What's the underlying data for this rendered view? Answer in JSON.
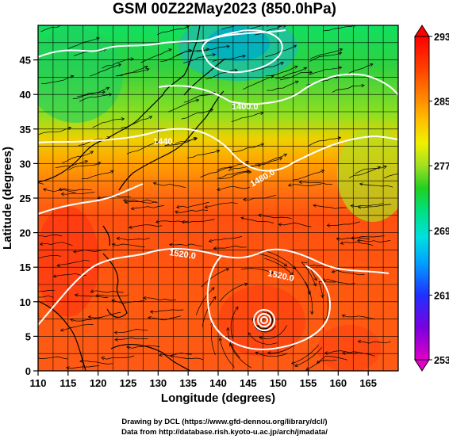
{
  "title": "GSM 00Z22May2023 (850.0hPa)",
  "axes": {
    "xlabel": "Longitude (degrees)",
    "ylabel": "Latitude  (degrees)",
    "xticks": [
      "110",
      "115",
      "120",
      "125",
      "130",
      "135",
      "140",
      "145",
      "150",
      "155",
      "160",
      "165"
    ],
    "yticks": [
      "0",
      "5",
      "10",
      "15",
      "20",
      "25",
      "30",
      "35",
      "40",
      "45"
    ],
    "xrange": [
      110,
      170
    ],
    "yrange": [
      0,
      50
    ]
  },
  "colorbar": {
    "labels": [
      "293",
      "285",
      "277",
      "269",
      "261",
      "253"
    ],
    "range": [
      253,
      293
    ],
    "colors": [
      "#e000c8",
      "#7a00e0",
      "#2030ff",
      "#00a0ff",
      "#00e0e0",
      "#00e080",
      "#20d020",
      "#a0e020",
      "#f0f000",
      "#ffc000",
      "#ff8000",
      "#ff4000",
      "#ff0000"
    ]
  },
  "contours": {
    "labels": [
      "1400.0",
      "1440.",
      "1480.0",
      "1520.0",
      "1520.0"
    ],
    "cyclone_center": {
      "lon": 147,
      "lat": 8.5
    }
  },
  "credits": {
    "line1": "Drawing by DCL (https://www.gfd-dennou.org/library/dcl/)",
    "line2": "Data from http://database.rish.kyoto-u.ac.jp/arch/jmadata/"
  }
}
